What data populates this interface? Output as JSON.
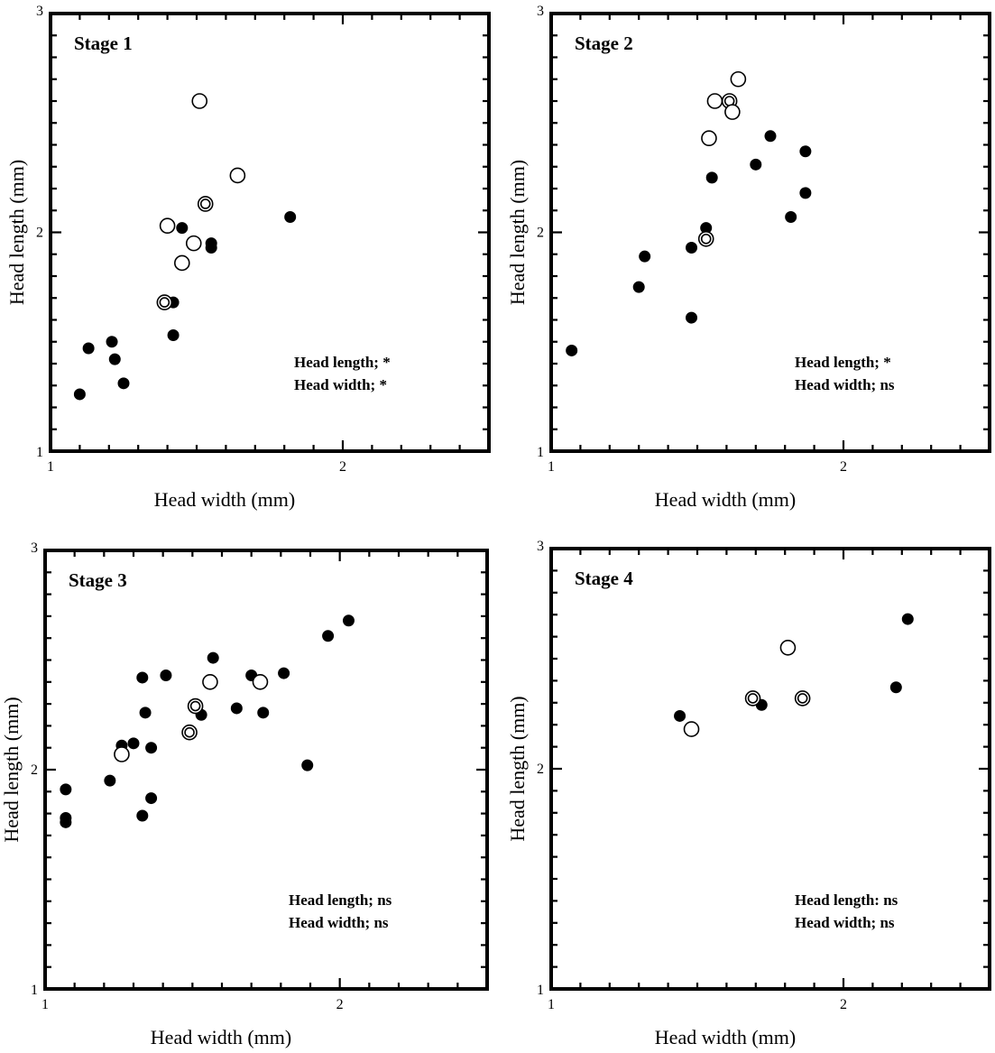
{
  "figure": {
    "colors": {
      "ink": "#000000",
      "background": "#ffffff"
    }
  },
  "chart_data": [
    {
      "type": "scatter",
      "title": "Stage 1",
      "xlabel": "Head width (mm)",
      "ylabel": "Head length (mm)",
      "xlim": [
        1,
        2.5
      ],
      "ylim": [
        1,
        3
      ],
      "xticks": [
        1,
        2
      ],
      "yticks": [
        1,
        2,
        3
      ],
      "annotations": [
        "Head length; *",
        "Head width; *"
      ],
      "markers": {
        "filled": "solid black circle",
        "open": "open circle",
        "double": "double circle"
      },
      "points": [
        {
          "x": 1.1,
          "y": 1.26,
          "marker": "filled"
        },
        {
          "x": 1.13,
          "y": 1.47,
          "marker": "filled"
        },
        {
          "x": 1.21,
          "y": 1.5,
          "marker": "filled"
        },
        {
          "x": 1.22,
          "y": 1.42,
          "marker": "filled"
        },
        {
          "x": 1.25,
          "y": 1.31,
          "marker": "filled"
        },
        {
          "x": 1.39,
          "y": 1.68,
          "marker": "filled"
        },
        {
          "x": 1.42,
          "y": 1.68,
          "marker": "filled"
        },
        {
          "x": 1.42,
          "y": 1.53,
          "marker": "filled"
        },
        {
          "x": 1.45,
          "y": 2.02,
          "marker": "filled"
        },
        {
          "x": 1.55,
          "y": 1.95,
          "marker": "filled"
        },
        {
          "x": 1.55,
          "y": 1.93,
          "marker": "filled"
        },
        {
          "x": 1.82,
          "y": 2.07,
          "marker": "filled"
        },
        {
          "x": 1.39,
          "y": 1.68,
          "marker": "double"
        },
        {
          "x": 1.4,
          "y": 2.03,
          "marker": "open"
        },
        {
          "x": 1.45,
          "y": 1.86,
          "marker": "open"
        },
        {
          "x": 1.49,
          "y": 1.95,
          "marker": "open"
        },
        {
          "x": 1.51,
          "y": 2.6,
          "marker": "open"
        },
        {
          "x": 1.53,
          "y": 2.13,
          "marker": "double"
        },
        {
          "x": 1.64,
          "y": 2.26,
          "marker": "open"
        }
      ]
    },
    {
      "type": "scatter",
      "title": "Stage 2",
      "xlabel": "Head width (mm)",
      "ylabel": "Head length (mm)",
      "xlim": [
        1,
        2.5
      ],
      "ylim": [
        1,
        3
      ],
      "xticks": [
        1,
        2
      ],
      "yticks": [
        1,
        2,
        3
      ],
      "annotations": [
        "Head length; *",
        "Head width; ns"
      ],
      "markers": {
        "filled": "solid black circle",
        "open": "open circle",
        "double": "double circle"
      },
      "points": [
        {
          "x": 1.07,
          "y": 1.46,
          "marker": "filled"
        },
        {
          "x": 1.3,
          "y": 1.75,
          "marker": "filled"
        },
        {
          "x": 1.32,
          "y": 1.89,
          "marker": "filled"
        },
        {
          "x": 1.48,
          "y": 1.61,
          "marker": "filled"
        },
        {
          "x": 1.48,
          "y": 1.93,
          "marker": "filled"
        },
        {
          "x": 1.53,
          "y": 2.02,
          "marker": "filled"
        },
        {
          "x": 1.55,
          "y": 2.25,
          "marker": "filled"
        },
        {
          "x": 1.7,
          "y": 2.31,
          "marker": "filled"
        },
        {
          "x": 1.75,
          "y": 2.44,
          "marker": "filled"
        },
        {
          "x": 1.82,
          "y": 2.07,
          "marker": "filled"
        },
        {
          "x": 1.87,
          "y": 2.37,
          "marker": "filled"
        },
        {
          "x": 1.87,
          "y": 2.18,
          "marker": "filled"
        },
        {
          "x": 1.53,
          "y": 1.97,
          "marker": "double"
        },
        {
          "x": 1.54,
          "y": 2.43,
          "marker": "open"
        },
        {
          "x": 1.56,
          "y": 2.6,
          "marker": "open"
        },
        {
          "x": 1.61,
          "y": 2.6,
          "marker": "double"
        },
        {
          "x": 1.62,
          "y": 2.55,
          "marker": "open"
        },
        {
          "x": 1.64,
          "y": 2.7,
          "marker": "open"
        }
      ]
    },
    {
      "type": "scatter",
      "title": "Stage 3",
      "xlabel": "Head width (mm)",
      "ylabel": "Head length (mm)",
      "xlim": [
        1,
        2.5
      ],
      "ylim": [
        1,
        3
      ],
      "xticks": [
        1,
        2
      ],
      "yticks": [
        1,
        2,
        3
      ],
      "annotations": [
        "Head length; ns",
        "Head width; ns"
      ],
      "markers": {
        "filled": "solid black circle",
        "open": "open circle",
        "double": "double circle"
      },
      "points": [
        {
          "x": 1.07,
          "y": 1.91,
          "marker": "filled"
        },
        {
          "x": 1.07,
          "y": 1.78,
          "marker": "filled"
        },
        {
          "x": 1.07,
          "y": 1.76,
          "marker": "filled"
        },
        {
          "x": 1.22,
          "y": 1.95,
          "marker": "filled"
        },
        {
          "x": 1.26,
          "y": 2.11,
          "marker": "filled"
        },
        {
          "x": 1.3,
          "y": 2.12,
          "marker": "filled"
        },
        {
          "x": 1.33,
          "y": 2.42,
          "marker": "filled"
        },
        {
          "x": 1.34,
          "y": 2.26,
          "marker": "filled"
        },
        {
          "x": 1.33,
          "y": 1.79,
          "marker": "filled"
        },
        {
          "x": 1.36,
          "y": 2.1,
          "marker": "filled"
        },
        {
          "x": 1.36,
          "y": 1.87,
          "marker": "filled"
        },
        {
          "x": 1.41,
          "y": 2.43,
          "marker": "filled"
        },
        {
          "x": 1.49,
          "y": 2.17,
          "marker": "filled"
        },
        {
          "x": 1.53,
          "y": 2.25,
          "marker": "filled"
        },
        {
          "x": 1.57,
          "y": 2.51,
          "marker": "filled"
        },
        {
          "x": 1.65,
          "y": 2.28,
          "marker": "filled"
        },
        {
          "x": 1.7,
          "y": 2.43,
          "marker": "filled"
        },
        {
          "x": 1.74,
          "y": 2.26,
          "marker": "filled"
        },
        {
          "x": 1.81,
          "y": 2.44,
          "marker": "filled"
        },
        {
          "x": 1.89,
          "y": 2.02,
          "marker": "filled"
        },
        {
          "x": 1.96,
          "y": 2.61,
          "marker": "filled"
        },
        {
          "x": 2.03,
          "y": 2.68,
          "marker": "filled"
        },
        {
          "x": 1.26,
          "y": 2.07,
          "marker": "open"
        },
        {
          "x": 1.49,
          "y": 2.17,
          "marker": "double"
        },
        {
          "x": 1.51,
          "y": 2.29,
          "marker": "double"
        },
        {
          "x": 1.56,
          "y": 2.4,
          "marker": "open"
        },
        {
          "x": 1.73,
          "y": 2.4,
          "marker": "open"
        }
      ]
    },
    {
      "type": "scatter",
      "title": "Stage 4",
      "xlabel": "Head width (mm)",
      "ylabel": "Head length (mm)",
      "xlim": [
        1,
        2.5
      ],
      "ylim": [
        1,
        3
      ],
      "xticks": [
        1,
        2
      ],
      "yticks": [
        1,
        2,
        3
      ],
      "annotations": [
        "Head length: ns",
        "Head width; ns"
      ],
      "markers": {
        "filled": "solid black circle",
        "open": "open circle",
        "double": "double circle"
      },
      "points": [
        {
          "x": 1.44,
          "y": 2.24,
          "marker": "filled"
        },
        {
          "x": 1.72,
          "y": 2.29,
          "marker": "filled"
        },
        {
          "x": 1.86,
          "y": 2.32,
          "marker": "filled"
        },
        {
          "x": 2.18,
          "y": 2.37,
          "marker": "filled"
        },
        {
          "x": 2.22,
          "y": 2.68,
          "marker": "filled"
        },
        {
          "x": 1.48,
          "y": 2.18,
          "marker": "open"
        },
        {
          "x": 1.69,
          "y": 2.32,
          "marker": "double"
        },
        {
          "x": 1.81,
          "y": 2.55,
          "marker": "open"
        },
        {
          "x": 1.86,
          "y": 2.32,
          "marker": "double"
        }
      ]
    }
  ]
}
